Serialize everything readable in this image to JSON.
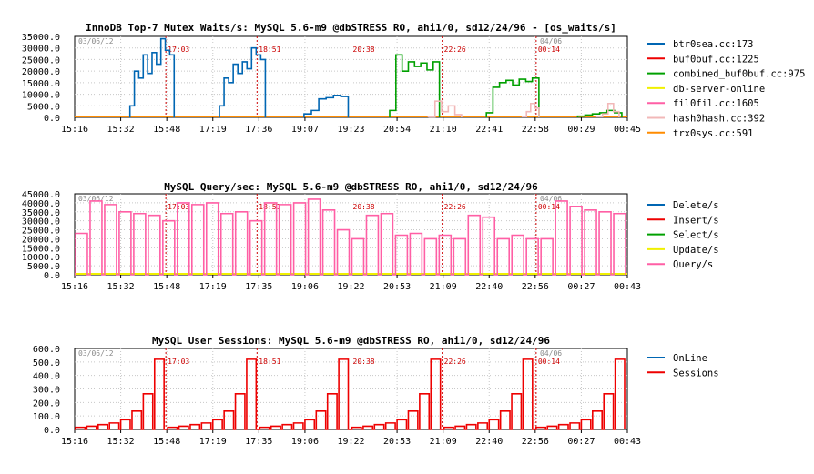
{
  "chart_data": [
    {
      "type": "line",
      "title": "InnoDB Top-7 Mutex Waits/s: MySQL 5.6-m9 @dbSTRESS RO, ahi1/0, sd12/24/96 - [os_waits/s]",
      "ylim": [
        0,
        35000
      ],
      "y_ticks": [
        "0.0",
        "5000.0",
        "10000.0",
        "15000.0",
        "20000.0",
        "25000.0",
        "30000.0",
        "35000.0"
      ],
      "x_ticks": [
        "15:16",
        "15:32",
        "15:48",
        "17:19",
        "17:36",
        "19:07",
        "19:23",
        "20:54",
        "21:10",
        "22:41",
        "22:58",
        "00:29",
        "00:45"
      ],
      "date_start": "03/06/12",
      "date_end": "04/06",
      "markers": [
        "17:03",
        "18:51",
        "20:38",
        "22:26",
        "00:14"
      ],
      "legend_position": "right",
      "series": [
        {
          "name": "btr0sea.cc:173",
          "color": "#0066b3",
          "segments": [
            {
              "start": 0.1,
              "end": 0.18,
              "steps": [
                5000,
                20000,
                17000,
                27000,
                19000,
                28000,
                23000,
                34000,
                29000,
                27000
              ]
            },
            {
              "start": 0.262,
              "end": 0.345,
              "steps": [
                5000,
                17000,
                15000,
                23000,
                19000,
                24000,
                21000,
                30000,
                27000,
                25000
              ]
            },
            {
              "start": 0.415,
              "end": 0.495,
              "steps": [
                1500,
                3000,
                8000,
                8500,
                9500,
                9000
              ]
            }
          ]
        },
        {
          "name": "buf0buf.cc:1225",
          "color": "#ee0000",
          "segments": []
        },
        {
          "name": "combined_buf0buf.cc:975",
          "color": "#00a000",
          "segments": [
            {
              "start": 0.57,
              "end": 0.66,
              "steps": [
                3000,
                27000,
                20000,
                24000,
                22000,
                23500,
                20500,
                24000
              ]
            },
            {
              "start": 0.745,
              "end": 0.84,
              "steps": [
                2000,
                13000,
                15000,
                16000,
                14000,
                16500,
                15500,
                17000
              ]
            },
            {
              "start": 0.91,
              "end": 0.99,
              "steps": [
                500,
                1000,
                1500,
                2000,
                3000,
                2000
              ]
            }
          ]
        },
        {
          "name": "db-server-online",
          "color": "#f0f000",
          "segments": []
        },
        {
          "name": "fil0fil.cc:1605",
          "color": "#ff5fa5",
          "segments": []
        },
        {
          "name": "hash0hash.cc:392",
          "color": "#f2b8b8",
          "segments": [
            {
              "start": 0.64,
              "end": 0.7,
              "steps": [
                200,
                7000,
                2500,
                5000,
                1200
              ]
            },
            {
              "start": 0.81,
              "end": 0.84,
              "steps": [
                300,
                2500,
                6000,
                4000
              ]
            },
            {
              "start": 0.945,
              "end": 0.985,
              "steps": [
                300,
                1500,
                6000,
                2500
              ]
            }
          ]
        },
        {
          "name": "trx0sys.cc:591",
          "color": "#ff8c00",
          "segments": []
        }
      ]
    },
    {
      "type": "line",
      "title": "MySQL Query/sec: MySQL 5.6-m9 @dbSTRESS RO, ahi1/0, sd12/24/96",
      "ylim": [
        0,
        45000
      ],
      "y_ticks": [
        "0.0",
        "5000.0",
        "10000.0",
        "15000.0",
        "20000.0",
        "25000.0",
        "30000.0",
        "35000.0",
        "40000.0",
        "45000.0"
      ],
      "x_ticks": [
        "15:16",
        "15:32",
        "15:48",
        "17:19",
        "17:35",
        "19:06",
        "19:22",
        "20:53",
        "21:09",
        "22:40",
        "22:56",
        "00:27",
        "00:43"
      ],
      "date_start": "03/06/12",
      "date_end": "04/06",
      "markers": [
        "17:03",
        "18:51",
        "20:38",
        "22:26",
        "00:14"
      ],
      "legend_position": "right",
      "pulse_values": [
        23000,
        41000,
        39000,
        35000,
        34000,
        33000,
        30000,
        40000,
        39000,
        40000,
        34000,
        35000,
        30000,
        40000,
        39000,
        40000,
        42000,
        36000,
        25000,
        20000,
        33000,
        34000,
        22000,
        23000,
        20000,
        22000,
        20000,
        33000,
        32000,
        20000,
        22000,
        20000,
        20000,
        41000,
        38000,
        36000,
        35000,
        34000
      ],
      "series": [
        {
          "name": "Delete/s",
          "color": "#0066b3"
        },
        {
          "name": "Insert/s",
          "color": "#ee0000"
        },
        {
          "name": "Select/s",
          "color": "#00a000"
        },
        {
          "name": "Update/s",
          "color": "#f0f000"
        },
        {
          "name": "Query/s",
          "color": "#ff5fa5"
        }
      ]
    },
    {
      "type": "line",
      "title": "MySQL User Sessions: MySQL 5.6-m9 @dbSTRESS RO, ahi1/0, sd12/24/96",
      "ylim": [
        0,
        600
      ],
      "y_ticks": [
        "0.0",
        "100.0",
        "200.0",
        "300.0",
        "400.0",
        "500.0",
        "600.0"
      ],
      "x_ticks": [
        "15:16",
        "15:32",
        "15:48",
        "17:19",
        "17:35",
        "19:06",
        "19:22",
        "20:53",
        "21:09",
        "22:40",
        "22:56",
        "00:27",
        "00:43"
      ],
      "date_start": "03/06/12",
      "date_end": "04/06",
      "markers": [
        "17:03",
        "18:51",
        "20:38",
        "22:26",
        "00:14"
      ],
      "legend_position": "right",
      "session_levels": [
        16,
        24,
        36,
        48,
        72,
        136,
        264,
        520
      ],
      "series": [
        {
          "name": "OnLine",
          "color": "#0066b3"
        },
        {
          "name": "Sessions",
          "color": "#ee0000"
        }
      ]
    }
  ]
}
